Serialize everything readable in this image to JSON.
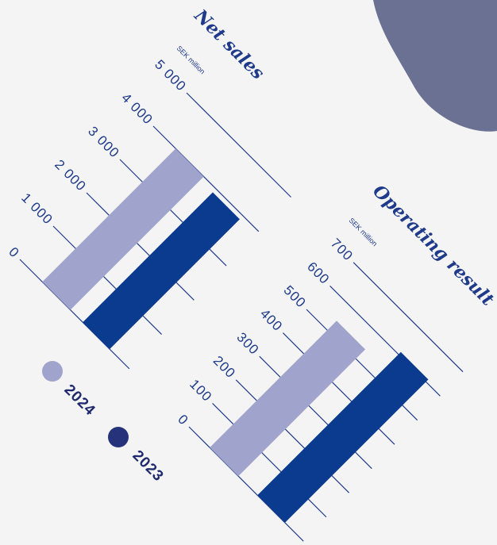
{
  "chart_data": [
    {
      "type": "bar",
      "title": "Net sales",
      "subtitle": "SEK million",
      "categories": [
        "Net sales"
      ],
      "series": [
        {
          "name": "2024",
          "color": "#a0a3cc",
          "values": [
            4000
          ]
        },
        {
          "name": "2023",
          "color": "#0a3b8f",
          "values": [
            3900
          ]
        }
      ],
      "ylim": [
        0,
        5000
      ],
      "yticks": [
        0,
        {
          "value": 1000,
          "label": "1 000"
        },
        {
          "value": 2000,
          "label": "2 000"
        },
        {
          "value": 3000,
          "label": "3 000"
        },
        {
          "value": 4000,
          "label": "4 000"
        },
        {
          "value": 5000,
          "label": "5 000"
        }
      ],
      "grid": true
    },
    {
      "type": "bar",
      "title": "Operating result",
      "subtitle": "SEK million",
      "categories": [
        "Operating result"
      ],
      "series": [
        {
          "name": "2024",
          "color": "#a0a3cc",
          "values": [
            540
          ]
        },
        {
          "name": "2023",
          "color": "#0a3b8f",
          "values": [
            610
          ]
        }
      ],
      "ylim": [
        0,
        700
      ],
      "yticks": [
        0,
        100,
        200,
        300,
        400,
        500,
        600,
        700
      ],
      "grid": true
    }
  ]
}
